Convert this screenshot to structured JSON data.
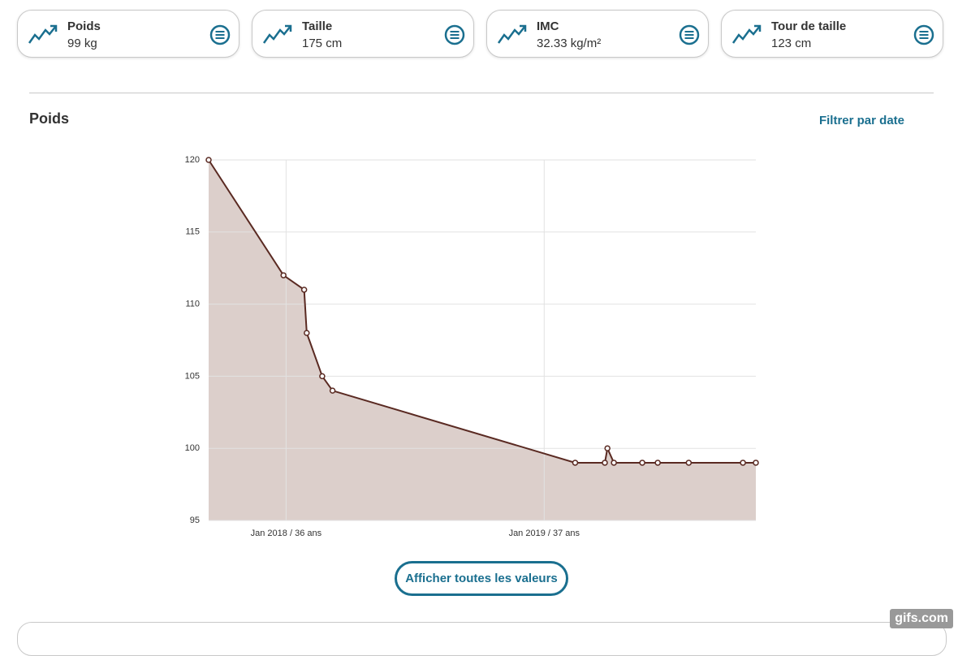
{
  "cards": [
    {
      "label": "Poids",
      "value": "99 kg"
    },
    {
      "label": "Taille",
      "value": "175 cm"
    },
    {
      "label": "IMC",
      "value": "32.33 kg/m²"
    },
    {
      "label": "Tour de taille",
      "value": "123 cm"
    }
  ],
  "section": {
    "title": "Poids",
    "filter": "Filtrer par date"
  },
  "button": "Afficher toutes les valeurs",
  "watermark": "gifs.com",
  "chart_data": {
    "type": "area",
    "x": [
      2017.7,
      2017.99,
      2018.07,
      2018.08,
      2018.14,
      2018.18,
      2019.12,
      2019.235,
      2019.245,
      2019.27,
      2019.38,
      2019.44,
      2019.56,
      2019.77,
      2019.82
    ],
    "series": [
      {
        "name": "Poids",
        "color": "#5a2a22",
        "fill": "#dccfcb",
        "values": [
          120,
          112,
          111,
          108,
          105,
          104,
          99,
          99,
          100,
          99,
          99,
          99,
          99,
          99,
          99
        ]
      }
    ],
    "xlim": [
      2017.7,
      2019.82
    ],
    "xticks": [
      {
        "value": 2018,
        "label": "Jan 2018 / 36 ans"
      },
      {
        "value": 2019,
        "label": "Jan 2019 / 37 ans"
      }
    ],
    "ylim": [
      95,
      120
    ],
    "yticks": [
      95,
      100,
      105,
      110,
      115,
      120
    ],
    "grid": true
  }
}
